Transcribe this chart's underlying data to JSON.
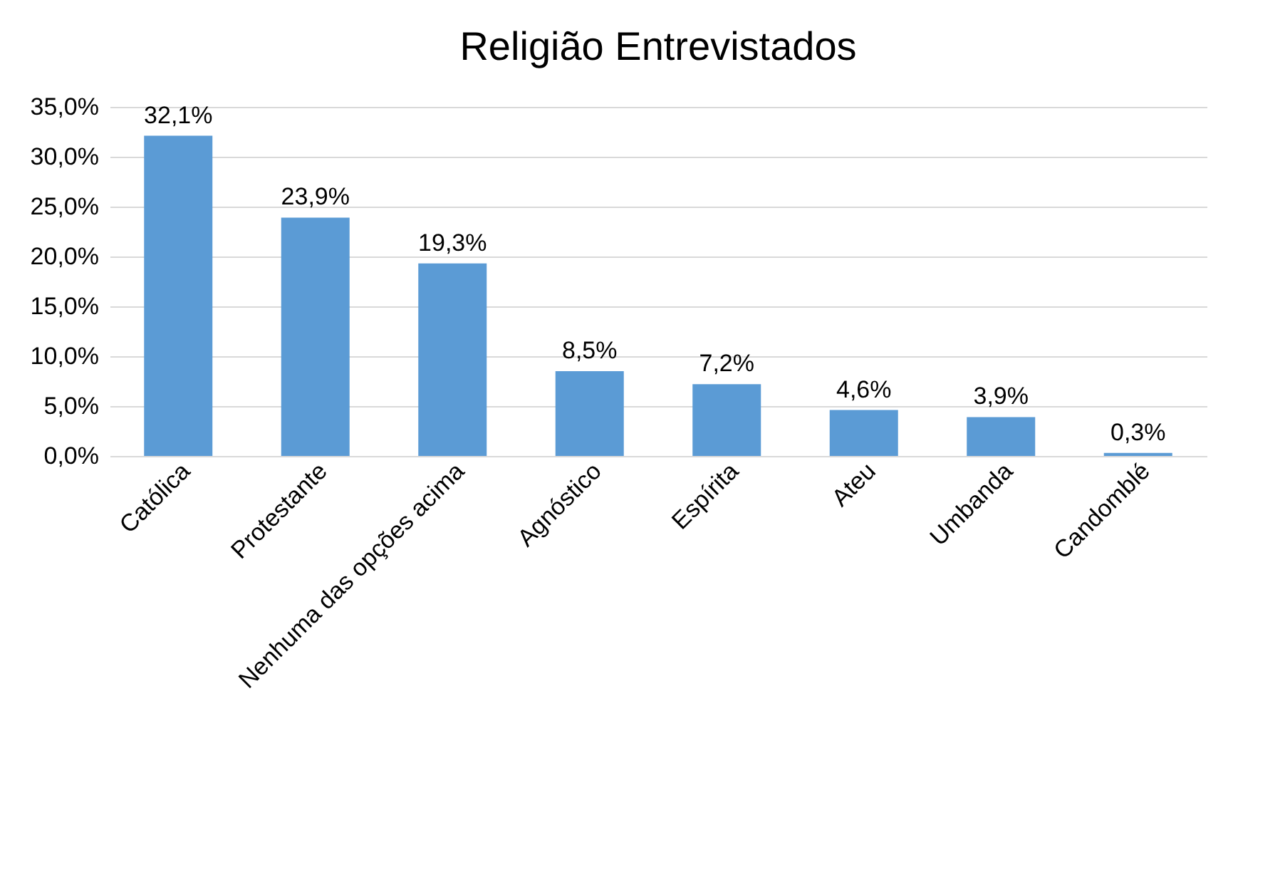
{
  "chart_data": {
    "type": "bar",
    "title": "Religião Entrevistados",
    "categories": [
      "Católica",
      "Protestante",
      "Nenhuma das opções acima",
      "Agnóstico",
      "Espírita",
      "Ateu",
      "Umbanda",
      "Candomblé"
    ],
    "values": [
      32.1,
      23.9,
      19.3,
      8.5,
      7.2,
      4.6,
      3.9,
      0.3
    ],
    "value_labels": [
      "32,1%",
      "23,9%",
      "19,3%",
      "8,5%",
      "7,2%",
      "4,6%",
      "3,9%",
      "0,3%"
    ],
    "color": "#5b9bd5",
    "ylim": [
      0,
      35
    ],
    "yticks": [
      {
        "value": 0,
        "label": "0,0%"
      },
      {
        "value": 5,
        "label": "5,0%"
      },
      {
        "value": 10,
        "label": "10,0%"
      },
      {
        "value": 15,
        "label": "15,0%"
      },
      {
        "value": 20,
        "label": "20,0%"
      },
      {
        "value": 25,
        "label": "25,0%"
      },
      {
        "value": 30,
        "label": "30,0%"
      },
      {
        "value": 35,
        "label": "35,0%"
      }
    ],
    "grid": "y"
  }
}
